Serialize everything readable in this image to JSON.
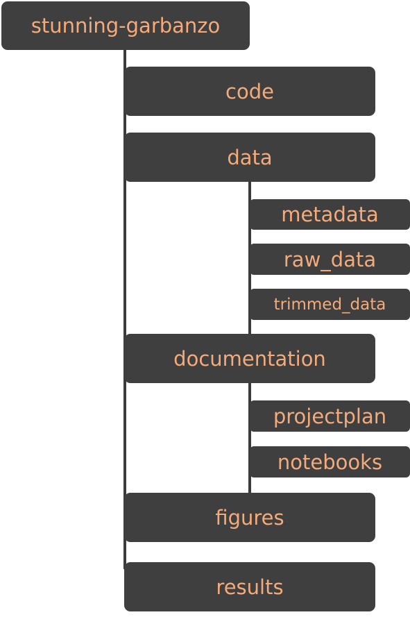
{
  "tree": {
    "root": "stunning-garbanzo",
    "code": "code",
    "data": "data",
    "data_children": [
      "metadata",
      "raw_data",
      "trimmed_data"
    ],
    "documentation": "documentation",
    "documentation_children": [
      "projectplan",
      "notebooks"
    ],
    "figures": "figures",
    "results": "results"
  },
  "colors": {
    "box_fill": "#3f3f3f",
    "text": "#f4ab7c",
    "connector": "#3b3b3b"
  }
}
